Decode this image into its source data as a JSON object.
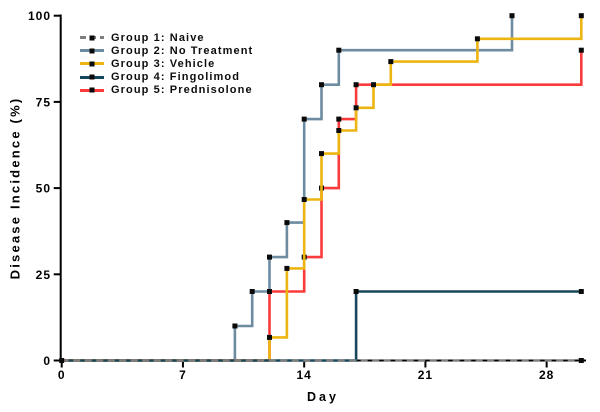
{
  "figure": {
    "ylabel": "Disease Incidence (%)",
    "xlabel": "Day"
  },
  "legend": {
    "items": [
      {
        "label": "Group 1: Naive",
        "color": "#7f7f7f",
        "style": "dashed"
      },
      {
        "label": "Group 2: No Treatment",
        "color": "#6d8ca1",
        "style": "solid"
      },
      {
        "label": "Group 3: Vehicle",
        "color": "#edb511",
        "style": "solid"
      },
      {
        "label": "Group 4: Fingolimod",
        "color": "#16475c",
        "style": "solid"
      },
      {
        "label": "Group 5: Prednisolone",
        "color": "#f93b3b",
        "style": "solid"
      }
    ],
    "marker_color": "#0a0a0a"
  },
  "chart_data": {
    "type": "line",
    "subtype": "kaplan-meier-incidence-steps",
    "title": "",
    "xlabel": "Day",
    "ylabel": "Disease Incidence (%)",
    "xlim": [
      0,
      30
    ],
    "ylim": [
      0,
      100
    ],
    "x_ticks": [
      0,
      7,
      14,
      21,
      28
    ],
    "y_ticks": [
      0,
      25,
      50,
      75,
      100
    ],
    "grid": false,
    "legend_position": "upper-left-inside",
    "marker": "black-square",
    "series": [
      {
        "name": "Group 1: Naive",
        "color": "#7f7f7f",
        "dashed": true,
        "start": [
          0,
          0
        ],
        "steps": [],
        "end_day": 30,
        "end_markers": [
          [
            0,
            0
          ],
          [
            30,
            0
          ]
        ]
      },
      {
        "name": "Group 2: No Treatment",
        "color": "#6d8ca1",
        "dashed": false,
        "start": [
          0,
          0
        ],
        "steps": [
          [
            10,
            10
          ],
          [
            11,
            20
          ],
          [
            12,
            30
          ],
          [
            13,
            40
          ],
          [
            14,
            70
          ],
          [
            15,
            80
          ],
          [
            16,
            90
          ],
          [
            26,
            100
          ]
        ],
        "end_day": 26,
        "end_markers": []
      },
      {
        "name": "Group 3: Vehicle",
        "color": "#edb511",
        "dashed": false,
        "start": [
          0,
          0
        ],
        "steps": [
          [
            12,
            6.7
          ],
          [
            13,
            26.7
          ],
          [
            14,
            46.7
          ],
          [
            15,
            60
          ],
          [
            16,
            66.7
          ],
          [
            17,
            73.3
          ],
          [
            18,
            80
          ],
          [
            19,
            86.7
          ],
          [
            24,
            93.3
          ],
          [
            30,
            100
          ]
        ],
        "end_day": 30,
        "end_markers": []
      },
      {
        "name": "Group 4: Fingolimod",
        "color": "#16475c",
        "dashed": false,
        "start": [
          0,
          0
        ],
        "steps": [
          [
            17,
            20
          ]
        ],
        "end_day": 30,
        "end_markers": [
          [
            30,
            20
          ]
        ]
      },
      {
        "name": "Group 5: Prednisolone",
        "color": "#f93b3b",
        "dashed": false,
        "start": [
          0,
          0
        ],
        "steps": [
          [
            12,
            20
          ],
          [
            14,
            30
          ],
          [
            15,
            50
          ],
          [
            16,
            70
          ],
          [
            17,
            80
          ],
          [
            30,
            90
          ]
        ],
        "end_day": 30,
        "end_markers": []
      }
    ]
  }
}
